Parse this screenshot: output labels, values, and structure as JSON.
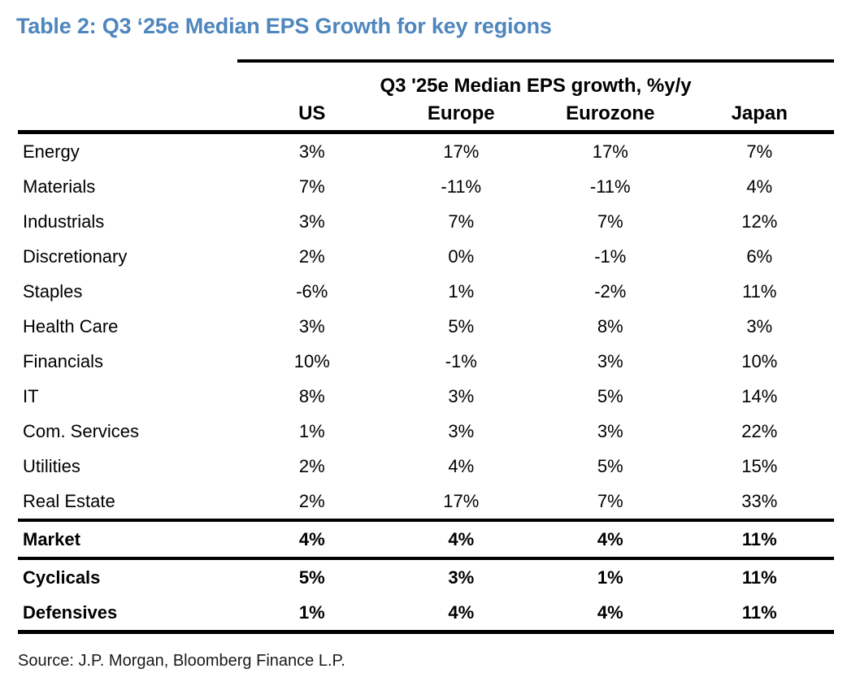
{
  "title": "Table 2: Q3 ‘25e Median EPS Growth for key regions",
  "chart_data": {
    "type": "table",
    "group_header": "Q3 '25e Median EPS growth, %y/y",
    "columns": [
      "US",
      "Europe",
      "Eurozone",
      "Japan"
    ],
    "sector_rows": [
      {
        "label": "Energy",
        "values": [
          "3%",
          "17%",
          "17%",
          "7%"
        ]
      },
      {
        "label": "Materials",
        "values": [
          "7%",
          "-11%",
          "-11%",
          "4%"
        ]
      },
      {
        "label": "Industrials",
        "values": [
          "3%",
          "7%",
          "7%",
          "12%"
        ]
      },
      {
        "label": "Discretionary",
        "values": [
          "2%",
          "0%",
          "-1%",
          "6%"
        ]
      },
      {
        "label": "Staples",
        "values": [
          "-6%",
          "1%",
          "-2%",
          "11%"
        ]
      },
      {
        "label": "Health Care",
        "values": [
          "3%",
          "5%",
          "8%",
          "3%"
        ]
      },
      {
        "label": "Financials",
        "values": [
          "10%",
          "-1%",
          "3%",
          "10%"
        ]
      },
      {
        "label": "IT",
        "values": [
          "8%",
          "3%",
          "5%",
          "14%"
        ]
      },
      {
        "label": "Com. Services",
        "values": [
          "1%",
          "3%",
          "3%",
          "22%"
        ]
      },
      {
        "label": "Utilities",
        "values": [
          "2%",
          "4%",
          "5%",
          "15%"
        ]
      },
      {
        "label": "Real Estate",
        "values": [
          "2%",
          "17%",
          "7%",
          "33%"
        ]
      }
    ],
    "market_rows": [
      {
        "label": "Market",
        "values": [
          "4%",
          "4%",
          "4%",
          "11%"
        ]
      }
    ],
    "summary_rows": [
      {
        "label": "Cyclicals",
        "values": [
          "5%",
          "3%",
          "1%",
          "11%"
        ]
      },
      {
        "label": "Defensives",
        "values": [
          "1%",
          "4%",
          "4%",
          "11%"
        ]
      }
    ]
  },
  "source": "Source: J.P. Morgan, Bloomberg Finance L.P.",
  "colors": {
    "title_blue": "#4E86BE",
    "text": "#000000",
    "rule": "#000000"
  }
}
